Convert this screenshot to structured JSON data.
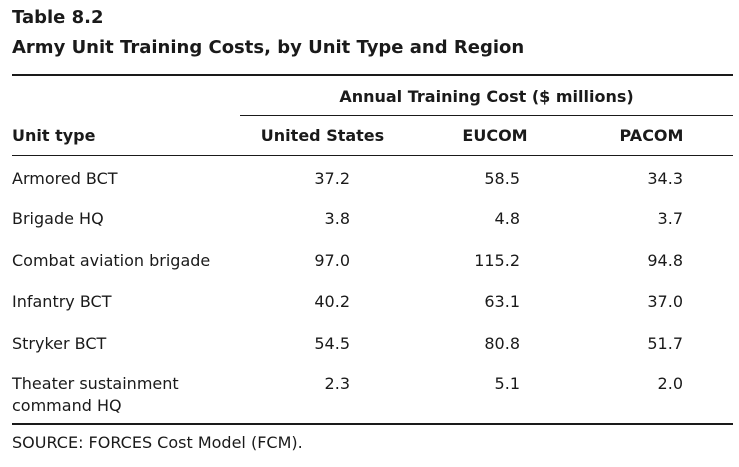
{
  "table": {
    "number": "Table 8.2",
    "title": "Army Unit Training Costs, by Unit Type and Region",
    "group_header": "Annual Training Cost ($ millions)",
    "columns": {
      "unit_type": "Unit type",
      "us": "United States",
      "eucom": "EUCOM",
      "pacom": "PACOM"
    },
    "rows": [
      {
        "name": "Armored BCT",
        "us": "37.2",
        "eucom": "58.5",
        "pacom": "34.3"
      },
      {
        "name": "Brigade HQ",
        "us": "3.8",
        "eucom": "4.8",
        "pacom": "3.7"
      },
      {
        "name": "Combat aviation brigade",
        "us": "97.0",
        "eucom": "115.2",
        "pacom": "94.8"
      },
      {
        "name": "Infantry BCT",
        "us": "40.2",
        "eucom": "63.1",
        "pacom": "37.0"
      },
      {
        "name": "Stryker BCT",
        "us": "54.5",
        "eucom": "80.8",
        "pacom": "51.7"
      },
      {
        "name": "Theater sustainment command HQ",
        "us": "2.3",
        "eucom": "5.1",
        "pacom": "2.0"
      }
    ],
    "source": "SOURCE: FORCES Cost Model (FCM)."
  }
}
